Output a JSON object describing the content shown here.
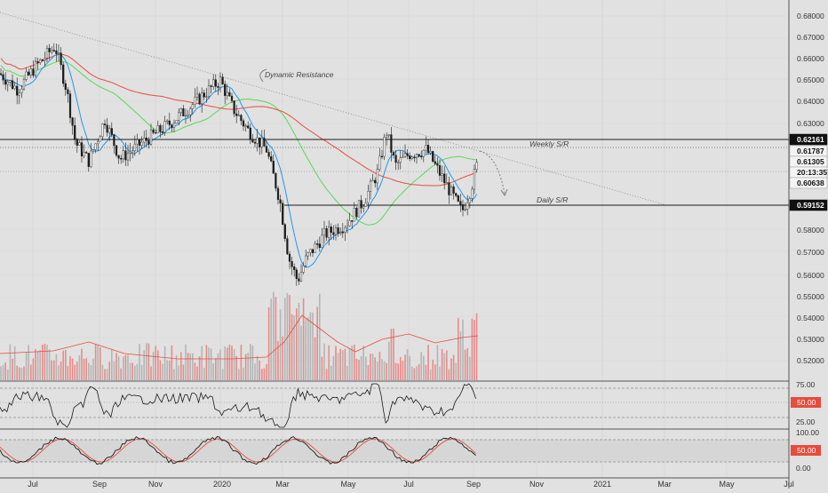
{
  "annotations": {
    "dynamic_resistance": "Dynamic Resistance",
    "weekly_sr": "Weekly S/R",
    "daily_sr": "Daily S/R"
  },
  "price_axis": {
    "ticks": [
      "0.68000",
      "0.67000",
      "0.66000",
      "0.65000",
      "0.64000",
      "0.63000",
      "0.58000",
      "0.57000",
      "0.56000",
      "0.55000",
      "0.54000",
      "0.53000",
      "0.52000"
    ],
    "badges": [
      {
        "label": "0.62161",
        "style": "dark"
      },
      {
        "label": "0.61787",
        "style": "light"
      },
      {
        "label": "0.61305",
        "style": "light"
      },
      {
        "label": "20:13:35",
        "style": "light"
      },
      {
        "label": "0.60638",
        "style": "light"
      },
      {
        "label": "0.59152",
        "style": "dark"
      }
    ]
  },
  "rsi_axis": {
    "ticks": [
      "75.00",
      "25.00"
    ],
    "badge": "50.00"
  },
  "stoch_axis": {
    "ticks": [
      "100.00",
      "0.00"
    ],
    "badge": "50.00"
  },
  "time_axis": {
    "labels": [
      "Jul",
      "Sep",
      "Nov",
      "2020",
      "Mar",
      "May",
      "Jul",
      "Sep",
      "Nov",
      "2021",
      "Mar",
      "May",
      "Jul"
    ]
  },
  "chart_data": {
    "type": "candlestick",
    "ylim": [
      0.51,
      0.686
    ],
    "horizontal_levels": [
      {
        "name": "Weekly S/R",
        "value": 0.62161
      },
      {
        "name": "Daily S/R",
        "value": 0.59152
      }
    ],
    "price_path": [
      [
        0,
        0.655
      ],
      [
        20,
        0.648
      ],
      [
        40,
        0.658
      ],
      [
        62,
        0.667
      ],
      [
        75,
        0.648
      ],
      [
        85,
        0.625
      ],
      [
        100,
        0.617
      ],
      [
        118,
        0.635
      ],
      [
        135,
        0.618
      ],
      [
        160,
        0.625
      ],
      [
        190,
        0.633
      ],
      [
        215,
        0.641
      ],
      [
        235,
        0.648
      ],
      [
        248,
        0.652
      ],
      [
        262,
        0.64
      ],
      [
        280,
        0.63
      ],
      [
        300,
        0.622
      ],
      [
        315,
        0.6
      ],
      [
        325,
        0.575
      ],
      [
        335,
        0.565
      ],
      [
        345,
        0.575
      ],
      [
        365,
        0.585
      ],
      [
        390,
        0.59
      ],
      [
        410,
        0.6
      ],
      [
        425,
        0.612
      ],
      [
        435,
        0.63
      ],
      [
        445,
        0.615
      ],
      [
        460,
        0.62
      ],
      [
        480,
        0.622
      ],
      [
        490,
        0.615
      ],
      [
        505,
        0.605
      ],
      [
        520,
        0.595
      ],
      [
        530,
        0.605
      ],
      [
        538,
        0.617
      ]
    ],
    "colors": {
      "bull": "#ffffff",
      "bear": "#1a1a1a",
      "ma_red": "#e74c3c",
      "ma_green": "#5cd65c",
      "ma_blue": "#2196f3",
      "vol_red": "#e88b8b",
      "vol_grey": "#b5b5b5"
    }
  }
}
